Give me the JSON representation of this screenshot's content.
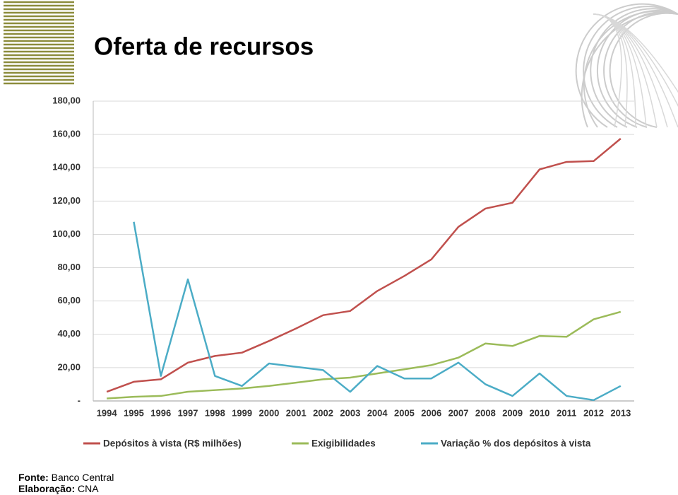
{
  "chart_data": {
    "type": "line",
    "title": "Oferta de recursos",
    "categories": [
      "1994",
      "1995",
      "1996",
      "1997",
      "1998",
      "1999",
      "2000",
      "2001",
      "2002",
      "2003",
      "2004",
      "2005",
      "2006",
      "2007",
      "2008",
      "2009",
      "2010",
      "2011",
      "2012",
      "2013"
    ],
    "series": [
      {
        "name": "Depósitos à vista (R$ milhões)",
        "color": "#c0504d",
        "values": [
          5.5,
          11.5,
          13,
          23,
          27,
          29,
          36,
          43.5,
          51.5,
          54,
          66,
          75,
          85,
          104.5,
          115.5,
          119,
          139,
          143.5,
          144,
          157.5
        ]
      },
      {
        "name": "Exigibilidades",
        "color": "#9bbb59",
        "values": [
          1.5,
          2.5,
          3,
          5.5,
          6.5,
          7.5,
          9,
          11,
          13,
          14,
          16.5,
          19,
          21.5,
          26,
          34.5,
          33,
          39,
          38.5,
          49,
          53.5
        ]
      },
      {
        "name": "Variação % dos depósitos à vista",
        "color": "#4bacc6",
        "values": [
          null,
          107.5,
          15,
          73,
          15,
          9,
          22.5,
          20.5,
          18.5,
          5.5,
          21,
          13.5,
          13.5,
          23,
          10,
          3,
          16.5,
          3,
          0.5,
          9
        ]
      }
    ],
    "ylim": [
      0,
      180
    ],
    "yticks": [
      {
        "value": 0,
        "label": "-"
      },
      {
        "value": 20,
        "label": "20,00"
      },
      {
        "value": 40,
        "label": "40,00"
      },
      {
        "value": 60,
        "label": "60,00"
      },
      {
        "value": 80,
        "label": "80,00"
      },
      {
        "value": 100,
        "label": "100,00"
      },
      {
        "value": 120,
        "label": "120,00"
      },
      {
        "value": 140,
        "label": "140,00"
      },
      {
        "value": 160,
        "label": "160,00"
      },
      {
        "value": 180,
        "label": "180,00"
      }
    ],
    "grid": true,
    "legend": "bottom",
    "source": {
      "label": "Fonte:",
      "text": "Banco Central"
    },
    "credit": {
      "label": "Elaboração:",
      "text": "CNA"
    }
  }
}
